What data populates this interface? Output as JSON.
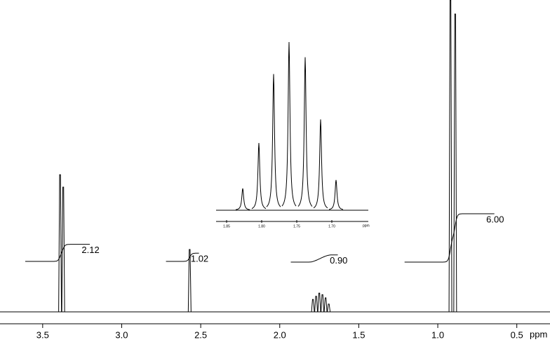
{
  "chart_data": {
    "type": "nmr",
    "x_label": "ppm",
    "xlim": [
      3.77,
      0.29
    ],
    "xticks": [
      3.5,
      {
        "value": 3,
        "label": "3.0"
      },
      2.5,
      {
        "value": 2,
        "label": "2.0"
      },
      1.5,
      {
        "value": 1,
        "label": "1.0"
      },
      0.5
    ],
    "ylim": [
      0,
      100
    ],
    "color": "#000000",
    "peaks": {
      "x": [
        3.39,
        3.37,
        2.57,
        1.79,
        1.77,
        1.75,
        1.73,
        1.71,
        1.69,
        0.92,
        0.89
      ],
      "values": [
        44,
        40,
        20,
        4,
        5,
        6,
        5.5,
        4.5,
        2.5,
        100,
        95.5
      ]
    },
    "integrals": {
      "x_start": [
        3.61,
        2.72,
        1.93,
        1.21
      ],
      "x_end": [
        3.2,
        2.51,
        1.63,
        0.64
      ],
      "values": [
        2.12,
        1.02,
        0.9,
        6
      ],
      "value_labels": [
        "2.12",
        "1.02",
        "0.90",
        "6.00"
      ]
    },
    "inset": {
      "x_label": "ppm",
      "xlim": [
        1.865,
        1.648
      ],
      "xticks": [
        1.85,
        {
          "value": 1.8,
          "label": "1.80"
        },
        1.75,
        {
          "value": 1.7,
          "label": "1.70"
        }
      ],
      "ylim": [
        0,
        100
      ],
      "peaks": {
        "x": [
          1.827,
          1.804,
          1.783,
          1.761,
          1.738,
          1.716,
          1.694
        ],
        "values": [
          13,
          40,
          81,
          100,
          91,
          54,
          18
        ]
      }
    }
  }
}
